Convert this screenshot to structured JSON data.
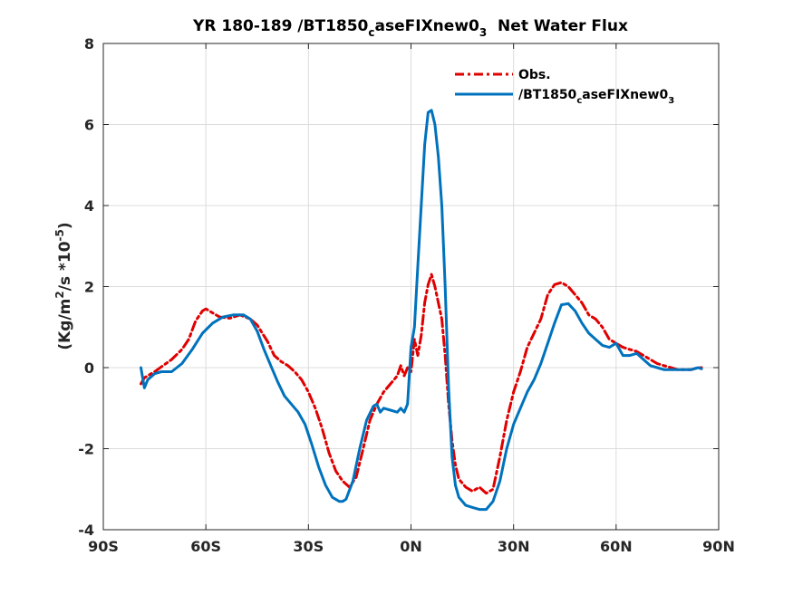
{
  "chart_data": {
    "type": "line",
    "title_main": "YR 180-189 /BT1850",
    "title_sub1": "c",
    "title_mid": "aseFIXnew0",
    "title_sub2": "3",
    "title_tail": "  Net Water Flux",
    "ylabel_pre": "(Kg/m",
    "ylabel_sup1": "2",
    "ylabel_mid": "/s *10",
    "ylabel_sup2": "-5",
    "ylabel_post": ")",
    "xlim": [
      -90,
      90
    ],
    "ylim": [
      -4,
      8
    ],
    "xticks": [
      -90,
      -60,
      -30,
      0,
      30,
      60,
      90
    ],
    "xtick_labels": [
      "90S",
      "60S",
      "30S",
      "0N",
      "30N",
      "60N",
      "90N"
    ],
    "yticks": [
      -4,
      -2,
      0,
      2,
      4,
      6,
      8
    ],
    "ytick_labels": [
      "-4",
      "-2",
      "0",
      "2",
      "4",
      "6",
      "8"
    ],
    "grid": true,
    "legend_position": "top-right",
    "legend": {
      "obs_label": "Obs.",
      "model_pre": "/BT1850",
      "model_sub1": "c",
      "model_mid": "aseFIXnew0",
      "model_sub2": "3"
    },
    "series": [
      {
        "color": "#e00000",
        "dash": "dashdot",
        "x": [
          -79,
          -78,
          -75,
          -70,
          -67,
          -65,
          -63,
          -61,
          -60,
          -58,
          -56,
          -53,
          -50,
          -47,
          -45,
          -42,
          -40,
          -38,
          -36,
          -34,
          -32,
          -30,
          -28,
          -26,
          -24,
          -22,
          -20,
          -18,
          -16,
          -14,
          -12,
          -10,
          -8,
          -6,
          -4,
          -3,
          -2,
          -1,
          0,
          1,
          2,
          3,
          4,
          5,
          6,
          7,
          8,
          9,
          10,
          11,
          12,
          13,
          14,
          16,
          18,
          20,
          22,
          24,
          26,
          28,
          30,
          32,
          34,
          36,
          38,
          40,
          42,
          44,
          46,
          48,
          50,
          52,
          54,
          56,
          58,
          60,
          62,
          64,
          66,
          68,
          70,
          72,
          74,
          76,
          78,
          80,
          82,
          84,
          85
        ],
        "y": [
          -0.4,
          -0.25,
          -0.1,
          0.2,
          0.45,
          0.7,
          1.15,
          1.4,
          1.45,
          1.35,
          1.25,
          1.22,
          1.3,
          1.2,
          1.05,
          0.65,
          0.3,
          0.15,
          0.05,
          -0.1,
          -0.3,
          -0.6,
          -1.0,
          -1.5,
          -2.1,
          -2.55,
          -2.8,
          -2.95,
          -2.7,
          -2.0,
          -1.3,
          -0.9,
          -0.6,
          -0.4,
          -0.2,
          0.05,
          -0.2,
          0.0,
          -0.1,
          0.7,
          0.3,
          0.8,
          1.6,
          2.05,
          2.3,
          2.0,
          1.6,
          1.2,
          0.3,
          -0.9,
          -1.8,
          -2.4,
          -2.75,
          -2.95,
          -3.05,
          -2.95,
          -3.1,
          -3.0,
          -2.2,
          -1.3,
          -0.6,
          -0.1,
          0.5,
          0.85,
          1.2,
          1.8,
          2.05,
          2.1,
          2.0,
          1.8,
          1.6,
          1.3,
          1.2,
          1.0,
          0.7,
          0.6,
          0.5,
          0.45,
          0.4,
          0.3,
          0.2,
          0.1,
          0.05,
          0.0,
          -0.05,
          -0.05,
          -0.05,
          0.0,
          0.0
        ]
      },
      {
        "color": "#0072bd",
        "dash": "solid",
        "x": [
          -79,
          -78,
          -77,
          -75,
          -73,
          -70,
          -67,
          -64,
          -61,
          -58,
          -55,
          -52,
          -49,
          -47,
          -45,
          -43,
          -41,
          -39,
          -37,
          -35,
          -33,
          -31,
          -29,
          -27,
          -25,
          -23,
          -21,
          -20,
          -19,
          -17,
          -15,
          -13,
          -11,
          -10,
          -9,
          -8,
          -6,
          -4,
          -3,
          -2,
          -1,
          0,
          1,
          2,
          3,
          4,
          5,
          6,
          7,
          8,
          9,
          10,
          11,
          12,
          13,
          14,
          16,
          18,
          20,
          22,
          24,
          26,
          28,
          30,
          32,
          34,
          36,
          38,
          40,
          42,
          44,
          46,
          48,
          50,
          52,
          54,
          56,
          58,
          60,
          62,
          64,
          66,
          68,
          70,
          72,
          74,
          76,
          78,
          80,
          82,
          84,
          85
        ],
        "y": [
          0.0,
          -0.5,
          -0.3,
          -0.15,
          -0.1,
          -0.1,
          0.1,
          0.45,
          0.85,
          1.1,
          1.25,
          1.3,
          1.3,
          1.2,
          0.9,
          0.45,
          0.05,
          -0.35,
          -0.7,
          -0.9,
          -1.1,
          -1.4,
          -1.9,
          -2.45,
          -2.9,
          -3.2,
          -3.3,
          -3.3,
          -3.25,
          -2.8,
          -2.0,
          -1.3,
          -0.95,
          -0.9,
          -1.1,
          -1.0,
          -1.05,
          -1.1,
          -1.0,
          -1.1,
          -0.9,
          0.5,
          1.0,
          2.5,
          4.0,
          5.5,
          6.3,
          6.35,
          6.0,
          5.2,
          4.0,
          2.0,
          -0.5,
          -2.2,
          -2.9,
          -3.2,
          -3.4,
          -3.45,
          -3.5,
          -3.5,
          -3.3,
          -2.8,
          -2.0,
          -1.4,
          -1.0,
          -0.6,
          -0.3,
          0.1,
          0.6,
          1.1,
          1.55,
          1.58,
          1.4,
          1.1,
          0.85,
          0.7,
          0.55,
          0.5,
          0.6,
          0.3,
          0.3,
          0.35,
          0.2,
          0.05,
          0.0,
          -0.05,
          -0.05,
          -0.05,
          -0.05,
          -0.05,
          0.0,
          -0.03
        ]
      }
    ]
  }
}
